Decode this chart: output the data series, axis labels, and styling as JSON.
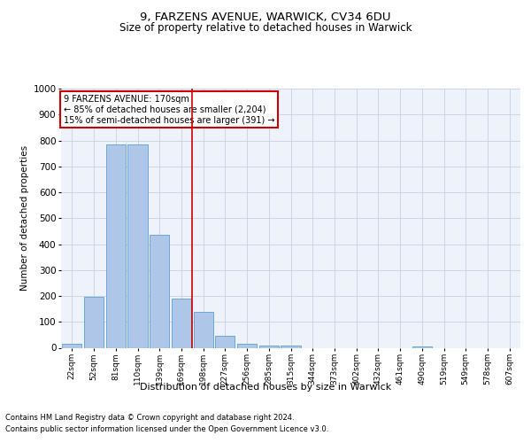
{
  "title1": "9, FARZENS AVENUE, WARWICK, CV34 6DU",
  "title2": "Size of property relative to detached houses in Warwick",
  "xlabel": "Distribution of detached houses by size in Warwick",
  "ylabel": "Number of detached properties",
  "footer1": "Contains HM Land Registry data © Crown copyright and database right 2024.",
  "footer2": "Contains public sector information licensed under the Open Government Licence v3.0.",
  "categories": [
    "22sqm",
    "52sqm",
    "81sqm",
    "110sqm",
    "139sqm",
    "169sqm",
    "198sqm",
    "227sqm",
    "256sqm",
    "285sqm",
    "315sqm",
    "344sqm",
    "373sqm",
    "402sqm",
    "432sqm",
    "461sqm",
    "490sqm",
    "519sqm",
    "549sqm",
    "578sqm",
    "607sqm"
  ],
  "values": [
    15,
    195,
    783,
    783,
    435,
    190,
    140,
    45,
    15,
    10,
    10,
    0,
    0,
    0,
    0,
    0,
    5,
    0,
    0,
    0,
    0
  ],
  "bar_color": "#aec6e8",
  "bar_edge_color": "#5a9fd4",
  "vline_color": "#cc0000",
  "vline_x": 5.5,
  "annotation_text": "9 FARZENS AVENUE: 170sqm\n← 85% of detached houses are smaller (2,204)\n15% of semi-detached houses are larger (391) →",
  "annotation_box_color": "#cc0000",
  "background_color": "#eef2fa",
  "grid_color": "#c8d0e0",
  "ylim": [
    0,
    1000
  ],
  "yticks": [
    0,
    100,
    200,
    300,
    400,
    500,
    600,
    700,
    800,
    900,
    1000
  ]
}
